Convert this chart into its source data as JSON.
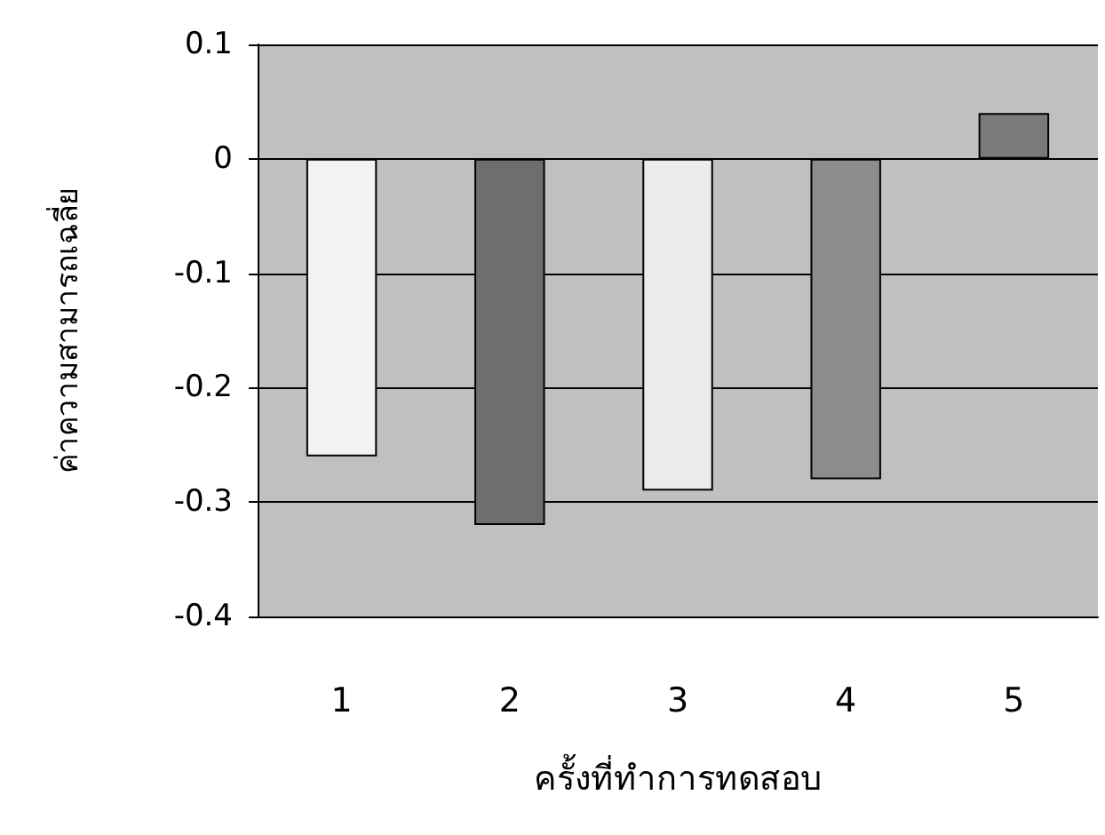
{
  "chart_data": {
    "type": "bar",
    "xlabel": "ครั้งที่ทำการทดสอบ",
    "ylabel": "ค่าความสามารถเฉลี่ย",
    "categories": [
      "1",
      "2",
      "3",
      "4",
      "5"
    ],
    "values": [
      -0.26,
      -0.32,
      -0.29,
      -0.28,
      0.04
    ],
    "colors": [
      "#f2f2f2",
      "#6e6e6e",
      "#ebebeb",
      "#8c8c8c",
      "#7a7a7a"
    ],
    "ylim": [
      -0.4,
      0.1
    ],
    "yticks": [
      -0.4,
      -0.3,
      -0.2,
      -0.1,
      0,
      0.1
    ],
    "grid": "y"
  }
}
